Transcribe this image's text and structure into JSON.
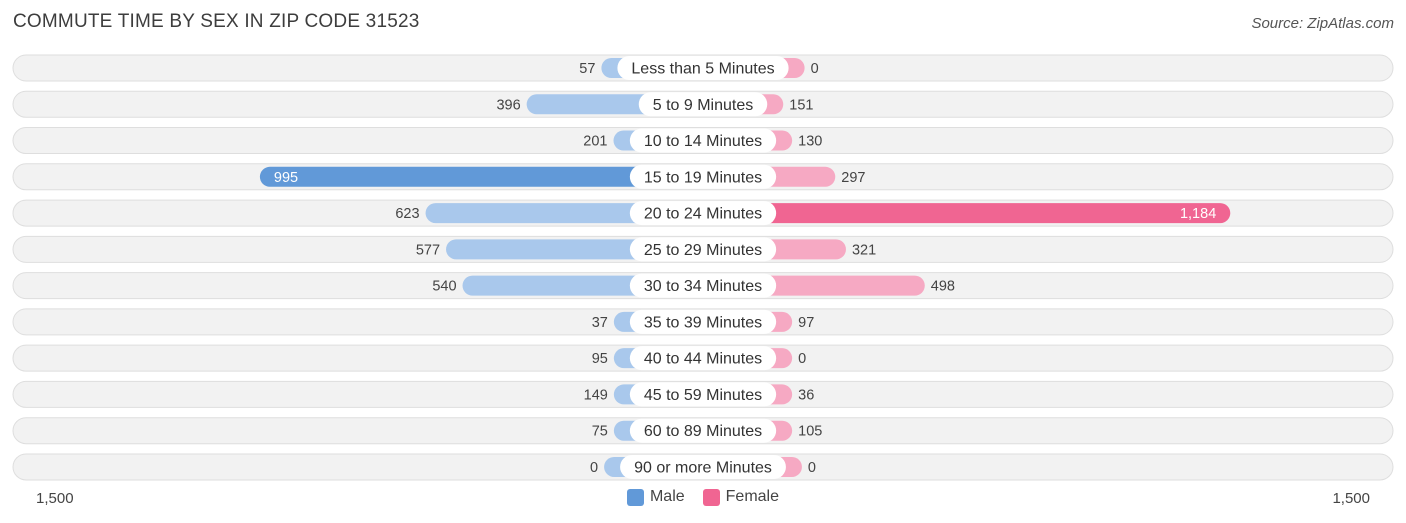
{
  "title": "COMMUTE TIME BY SEX IN ZIP CODE 31523",
  "source": "Source: ZipAtlas.com",
  "colors": {
    "male_light": "#a9c8ec",
    "male_strong": "#6199d8",
    "female_light": "#f6a9c3",
    "female_strong": "#f06592",
    "track": "#f2f2f2",
    "track_border": "#dedede"
  },
  "chart_data": {
    "type": "bar",
    "orientation": "diverging-horizontal",
    "categories": [
      "Less than 5 Minutes",
      "5 to 9 Minutes",
      "10 to 14 Minutes",
      "15 to 19 Minutes",
      "20 to 24 Minutes",
      "25 to 29 Minutes",
      "30 to 34 Minutes",
      "35 to 39 Minutes",
      "40 to 44 Minutes",
      "45 to 59 Minutes",
      "60 to 89 Minutes",
      "90 or more Minutes"
    ],
    "series": [
      {
        "name": "Male",
        "values": [
          57,
          396,
          201,
          995,
          623,
          577,
          540,
          37,
          95,
          149,
          75,
          0
        ]
      },
      {
        "name": "Female",
        "values": [
          0,
          151,
          130,
          297,
          1184,
          321,
          498,
          97,
          0,
          36,
          105,
          0
        ]
      }
    ],
    "value_labels": {
      "male": [
        "57",
        "396",
        "201",
        "995",
        "623",
        "577",
        "540",
        "37",
        "95",
        "149",
        "75",
        "0"
      ],
      "female": [
        "0",
        "151",
        "130",
        "297",
        "1,184",
        "321",
        "498",
        "97",
        "0",
        "36",
        "105",
        "0"
      ]
    },
    "xlim": [
      -1500,
      1500
    ],
    "axis_labels": {
      "left": "1,500",
      "right": "1,500"
    },
    "legend_position": "bottom-center"
  }
}
